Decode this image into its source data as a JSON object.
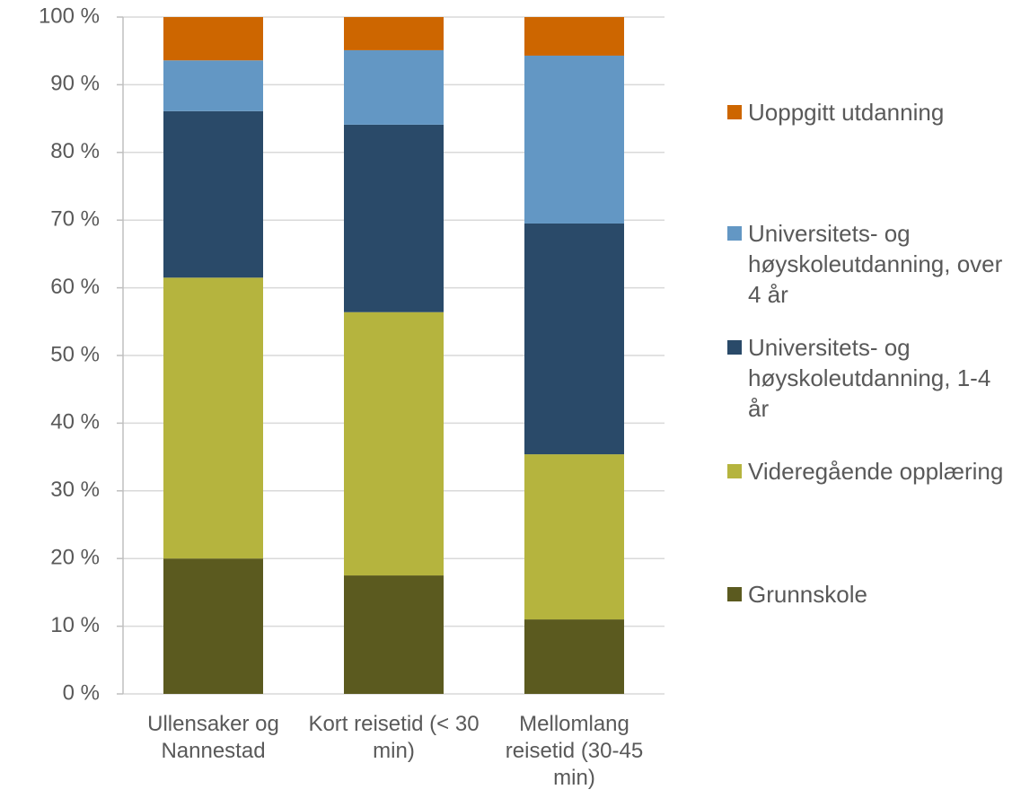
{
  "chart_data": {
    "type": "stacked_bar",
    "categories": [
      "Ullensaker og Nannestad",
      "Kort reisetid (< 30 min)",
      "Mellomlang reisetid (30-45 min)"
    ],
    "series": [
      {
        "name": "Grunnskole",
        "color": "#5b5a1f",
        "values": [
          20.0,
          17.5,
          11.0
        ]
      },
      {
        "name": "Videregående opplæring",
        "color": "#b5b43e",
        "values": [
          41.5,
          38.9,
          24.4
        ]
      },
      {
        "name": "Universitets- og høyskoleutdanning, 1-4 år",
        "color": "#2a4a69",
        "values": [
          24.6,
          27.7,
          34.1
        ]
      },
      {
        "name": "Universitets- og høyskoleutdanning, over 4 år",
        "color": "#6397c4",
        "values": [
          7.5,
          11.0,
          24.8
        ]
      },
      {
        "name": "Uoppgitt utdanning",
        "color": "#cd6600",
        "values": [
          6.4,
          4.9,
          5.7
        ]
      }
    ],
    "ylim": [
      0,
      100
    ],
    "yticks": [
      {
        "value": 0,
        "label": "0 %"
      },
      {
        "value": 10,
        "label": "10 %"
      },
      {
        "value": 20,
        "label": "20 %"
      },
      {
        "value": 30,
        "label": "30 %"
      },
      {
        "value": 40,
        "label": "40 %"
      },
      {
        "value": 50,
        "label": "50 %"
      },
      {
        "value": 60,
        "label": "60 %"
      },
      {
        "value": 70,
        "label": "70 %"
      },
      {
        "value": 80,
        "label": "80 %"
      },
      {
        "value": 90,
        "label": "90 %"
      },
      {
        "value": 100,
        "label": "100 %"
      }
    ],
    "grid": true,
    "legend": "right"
  }
}
